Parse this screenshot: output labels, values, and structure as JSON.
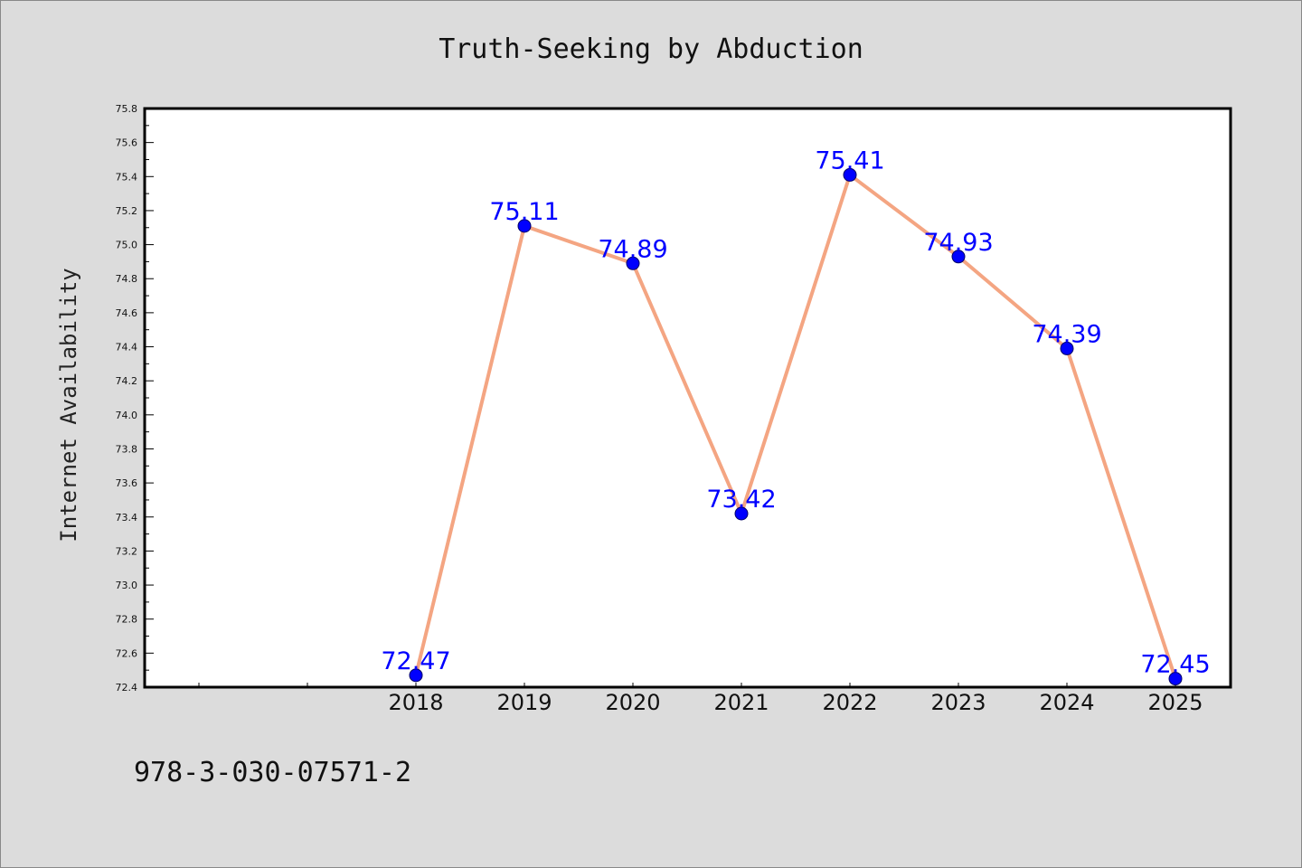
{
  "chart_data": {
    "type": "line",
    "title": "Truth-Seeking by Abduction",
    "xlabel": "",
    "ylabel": "Internet Availability",
    "categories": [
      "2018",
      "2019",
      "2020",
      "2021",
      "2022",
      "2023",
      "2024",
      "2025"
    ],
    "series": [
      {
        "values": [
          72.47,
          75.11,
          74.89,
          73.42,
          75.41,
          74.93,
          74.39,
          72.45
        ],
        "value_labels": [
          "72.47",
          "75.11",
          "74.89",
          "73.42",
          "75.41",
          "74.93",
          "74.39",
          "72.45"
        ],
        "line_color": "#f4a582",
        "marker_color": "#0000ff"
      }
    ],
    "ylim": [
      72.4,
      75.8
    ],
    "y_ticks": [
      "72.4",
      "72.6",
      "72.8",
      "73.0",
      "73.2",
      "73.4",
      "73.6",
      "73.8",
      "74.0",
      "74.2",
      "74.4",
      "74.6",
      "74.8",
      "75.0",
      "75.2",
      "75.4",
      "75.6",
      "75.8"
    ],
    "grid": false,
    "legend": "none",
    "label_color": "#0000ff",
    "background_color": "#dcdcdc",
    "plot_background": "#ffffff"
  },
  "footer": {
    "isbn": "978-3-030-07571-2"
  }
}
